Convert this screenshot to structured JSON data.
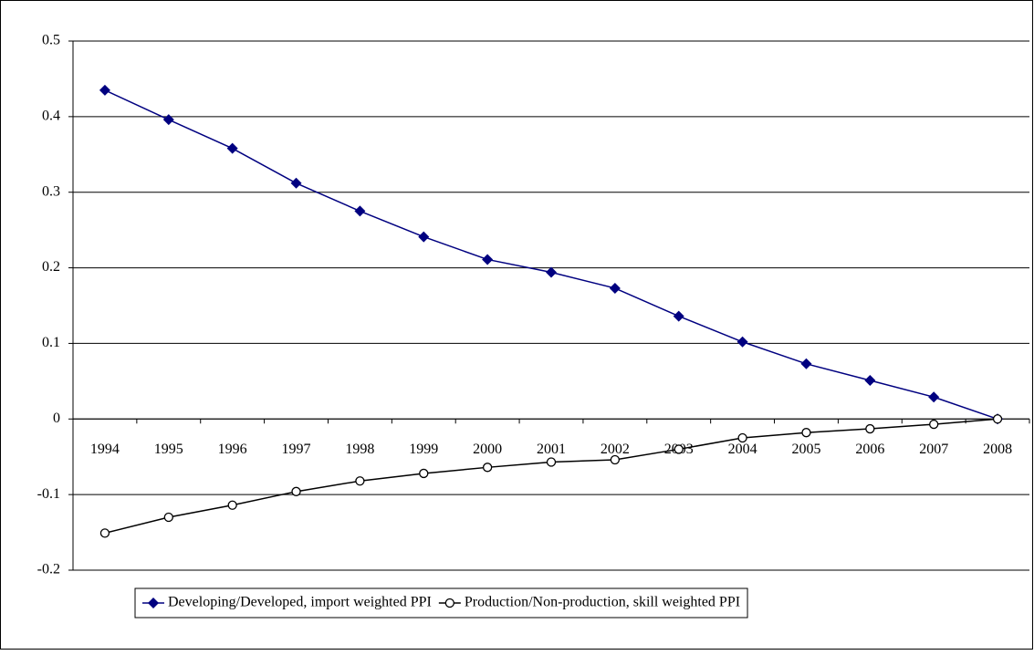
{
  "chart_data": {
    "type": "line",
    "categories": [
      "1994",
      "1995",
      "1996",
      "1997",
      "1998",
      "1999",
      "2000",
      "2001",
      "2002",
      "2003",
      "2004",
      "2005",
      "2006",
      "2007",
      "2008"
    ],
    "series": [
      {
        "name": "Developing/Developed, import weighted PPI",
        "color": "#000080",
        "marker": "diamond",
        "values": [
          0.435,
          0.396,
          0.358,
          0.312,
          0.275,
          0.241,
          0.211,
          0.194,
          0.173,
          0.136,
          0.102,
          0.073,
          0.051,
          0.029,
          0
        ]
      },
      {
        "name": "Production/Non-production, skill weighted PPI",
        "color": "#000000",
        "marker": "circle",
        "values": [
          -0.151,
          -0.13,
          -0.114,
          -0.096,
          -0.082,
          -0.072,
          -0.064,
          -0.057,
          -0.054,
          -0.04,
          -0.025,
          -0.018,
          -0.013,
          -0.007,
          0
        ]
      }
    ],
    "ylim": [
      -0.2,
      0.5
    ],
    "yticks": [
      -0.2,
      -0.1,
      0,
      0.1,
      0.2,
      0.3,
      0.4,
      0.5
    ],
    "grid": true,
    "legend": "bottom"
  }
}
